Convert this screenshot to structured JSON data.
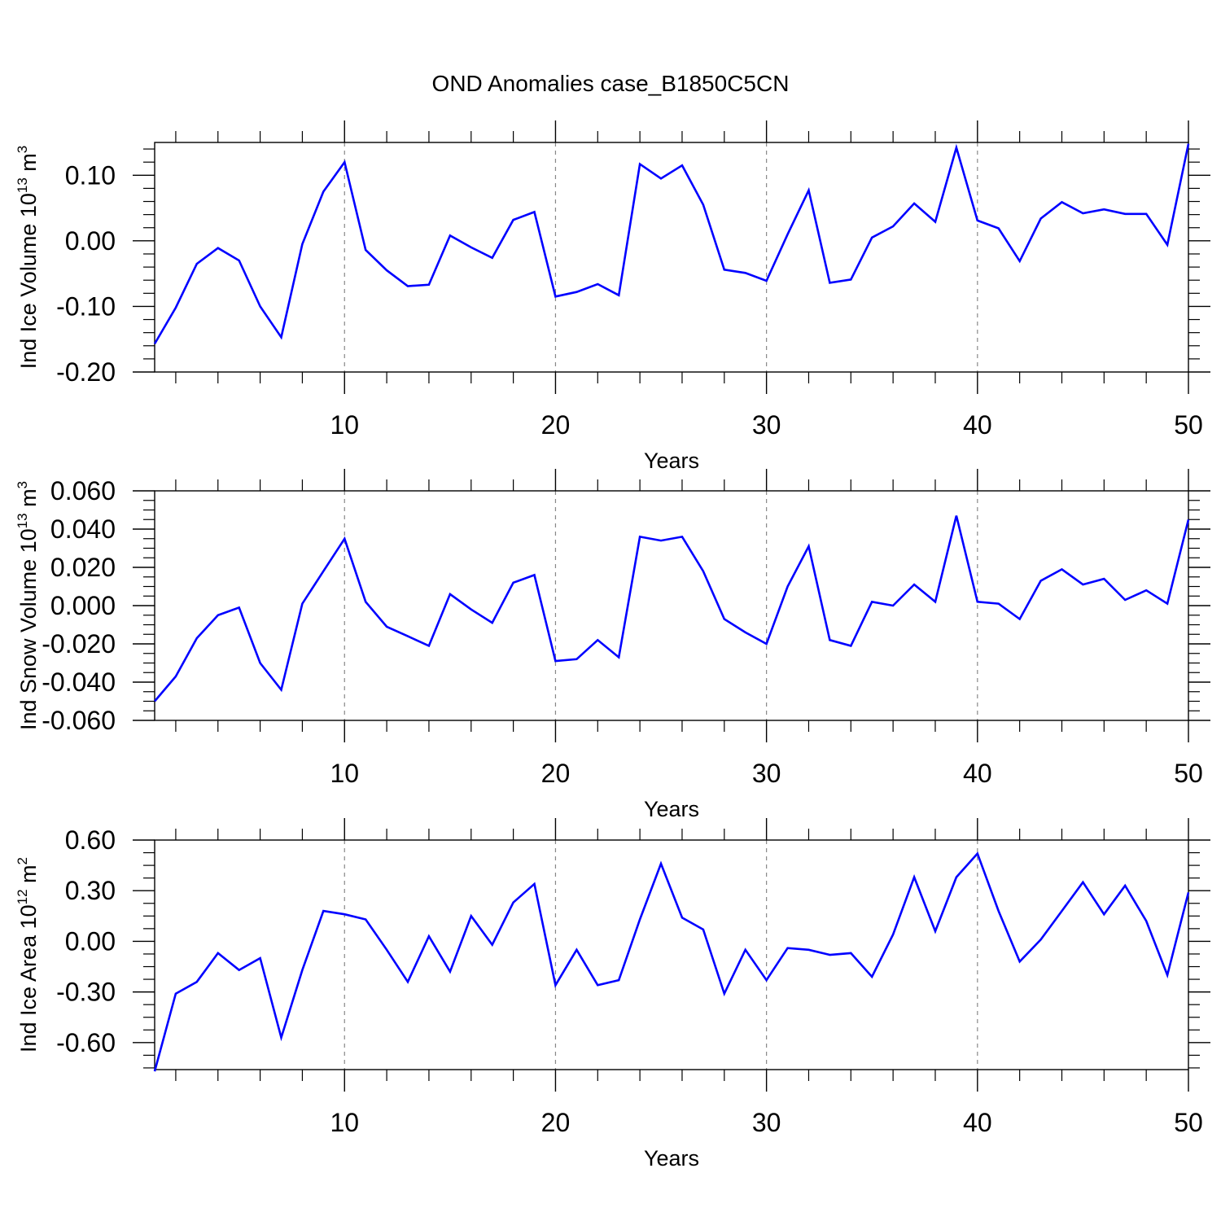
{
  "title": "OND Anomalies case_B1850C5CN",
  "line_color": "#0000ff",
  "chart_data": [
    {
      "type": "line",
      "title": "",
      "xlabel": "Years",
      "ylabel_main": "Ind Ice Volume 10",
      "ylabel_exp": "13",
      "ylabel_unit": " m",
      "ylabel_unit_exp": "3",
      "xlim": [
        1,
        50
      ],
      "ylim": [
        -0.2,
        0.15
      ],
      "x_ticks": [
        10,
        20,
        30,
        40,
        50
      ],
      "x_tick_labels": [
        "10",
        "20",
        "30",
        "40",
        "50"
      ],
      "y_ticks": [
        -0.2,
        -0.1,
        0.0,
        0.1
      ],
      "y_tick_labels": [
        "-0.20",
        "-0.10",
        "0.00",
        "0.10"
      ],
      "y_minor_step": 0.02,
      "grid": "vertical dashed at major x ticks",
      "x": [
        1,
        2,
        3,
        4,
        5,
        6,
        7,
        8,
        9,
        10,
        11,
        12,
        13,
        14,
        15,
        16,
        17,
        18,
        19,
        20,
        21,
        22,
        23,
        24,
        25,
        26,
        27,
        28,
        29,
        30,
        31,
        32,
        33,
        34,
        35,
        36,
        37,
        38,
        39,
        40,
        41,
        42,
        43,
        44,
        45,
        46,
        47,
        48,
        49,
        50
      ],
      "series": [
        {
          "values": [
            -0.157,
            -0.102,
            -0.035,
            -0.011,
            -0.03,
            -0.1,
            -0.147,
            -0.005,
            0.075,
            0.12,
            -0.014,
            -0.045,
            -0.069,
            -0.067,
            0.008,
            -0.01,
            -0.026,
            0.032,
            0.044,
            -0.085,
            -0.078,
            -0.066,
            -0.083,
            0.117,
            0.095,
            0.115,
            0.055,
            -0.044,
            -0.049,
            -0.061,
            0.01,
            0.077,
            -0.064,
            -0.059,
            0.005,
            0.022,
            0.057,
            0.029,
            0.142,
            0.031,
            0.019,
            -0.031,
            0.034,
            0.059,
            0.042,
            0.048,
            0.041,
            0.041,
            -0.006,
            0.148
          ]
        }
      ]
    },
    {
      "type": "line",
      "title": "",
      "xlabel": "Years",
      "ylabel_main": "Ind Snow Volume 10",
      "ylabel_exp": "13",
      "ylabel_unit": " m",
      "ylabel_unit_exp": "3",
      "xlim": [
        1,
        50
      ],
      "ylim": [
        -0.06,
        0.06
      ],
      "x_ticks": [
        10,
        20,
        30,
        40,
        50
      ],
      "x_tick_labels": [
        "10",
        "20",
        "30",
        "40",
        "50"
      ],
      "y_ticks": [
        -0.06,
        -0.04,
        -0.02,
        0.0,
        0.02,
        0.04,
        0.06
      ],
      "y_tick_labels": [
        "-0.060",
        "-0.040",
        "-0.020",
        "0.000",
        "0.020",
        "0.040",
        "0.060"
      ],
      "y_minor_step": 0.005,
      "grid": "vertical dashed at major x ticks",
      "x": [
        1,
        2,
        3,
        4,
        5,
        6,
        7,
        8,
        9,
        10,
        11,
        12,
        13,
        14,
        15,
        16,
        17,
        18,
        19,
        20,
        21,
        22,
        23,
        24,
        25,
        26,
        27,
        28,
        29,
        30,
        31,
        32,
        33,
        34,
        35,
        36,
        37,
        38,
        39,
        40,
        41,
        42,
        43,
        44,
        45,
        46,
        47,
        48,
        49,
        50
      ],
      "series": [
        {
          "values": [
            -0.05,
            -0.037,
            -0.017,
            -0.005,
            -0.001,
            -0.03,
            -0.044,
            0.001,
            0.018,
            0.035,
            0.002,
            -0.011,
            -0.016,
            -0.021,
            0.006,
            -0.002,
            -0.009,
            0.012,
            0.016,
            -0.029,
            -0.028,
            -0.018,
            -0.027,
            0.036,
            0.034,
            0.036,
            0.018,
            -0.007,
            -0.014,
            -0.02,
            0.01,
            0.031,
            -0.018,
            -0.021,
            0.002,
            0.0,
            0.011,
            0.002,
            0.047,
            0.002,
            0.001,
            -0.007,
            0.013,
            0.019,
            0.011,
            0.014,
            0.003,
            0.008,
            0.001,
            0.045
          ]
        }
      ]
    },
    {
      "type": "line",
      "title": "",
      "xlabel": "Years",
      "ylabel_main": "Ind Ice Area 10",
      "ylabel_exp": "12",
      "ylabel_unit": " m",
      "ylabel_unit_exp": "2",
      "xlim": [
        1,
        50
      ],
      "ylim": [
        -0.76,
        0.6
      ],
      "x_ticks": [
        10,
        20,
        30,
        40,
        50
      ],
      "x_tick_labels": [
        "10",
        "20",
        "30",
        "40",
        "50"
      ],
      "y_ticks": [
        -0.6,
        -0.3,
        0.0,
        0.3,
        0.6
      ],
      "y_tick_labels": [
        "-0.60",
        "-0.30",
        "0.00",
        "0.30",
        "0.60"
      ],
      "y_minor_step": 0.075,
      "grid": "vertical dashed at major x ticks",
      "x": [
        1,
        2,
        3,
        4,
        5,
        6,
        7,
        8,
        9,
        10,
        11,
        12,
        13,
        14,
        15,
        16,
        17,
        18,
        19,
        20,
        21,
        22,
        23,
        24,
        25,
        26,
        27,
        28,
        29,
        30,
        31,
        32,
        33,
        34,
        35,
        36,
        37,
        38,
        39,
        40,
        41,
        42,
        43,
        44,
        45,
        46,
        47,
        48,
        49,
        50
      ],
      "series": [
        {
          "values": [
            -0.77,
            -0.31,
            -0.24,
            -0.07,
            -0.17,
            -0.1,
            -0.57,
            -0.17,
            0.18,
            0.16,
            0.13,
            -0.05,
            -0.24,
            0.03,
            -0.18,
            0.15,
            -0.02,
            0.23,
            0.34,
            -0.26,
            -0.05,
            -0.26,
            -0.23,
            0.13,
            0.46,
            0.14,
            0.07,
            -0.31,
            -0.05,
            -0.23,
            -0.04,
            -0.05,
            -0.08,
            -0.07,
            -0.21,
            0.04,
            0.38,
            0.06,
            0.38,
            0.52,
            0.18,
            -0.12,
            0.01,
            0.18,
            0.35,
            0.16,
            0.33,
            0.12,
            -0.2,
            0.29
          ]
        }
      ]
    }
  ]
}
